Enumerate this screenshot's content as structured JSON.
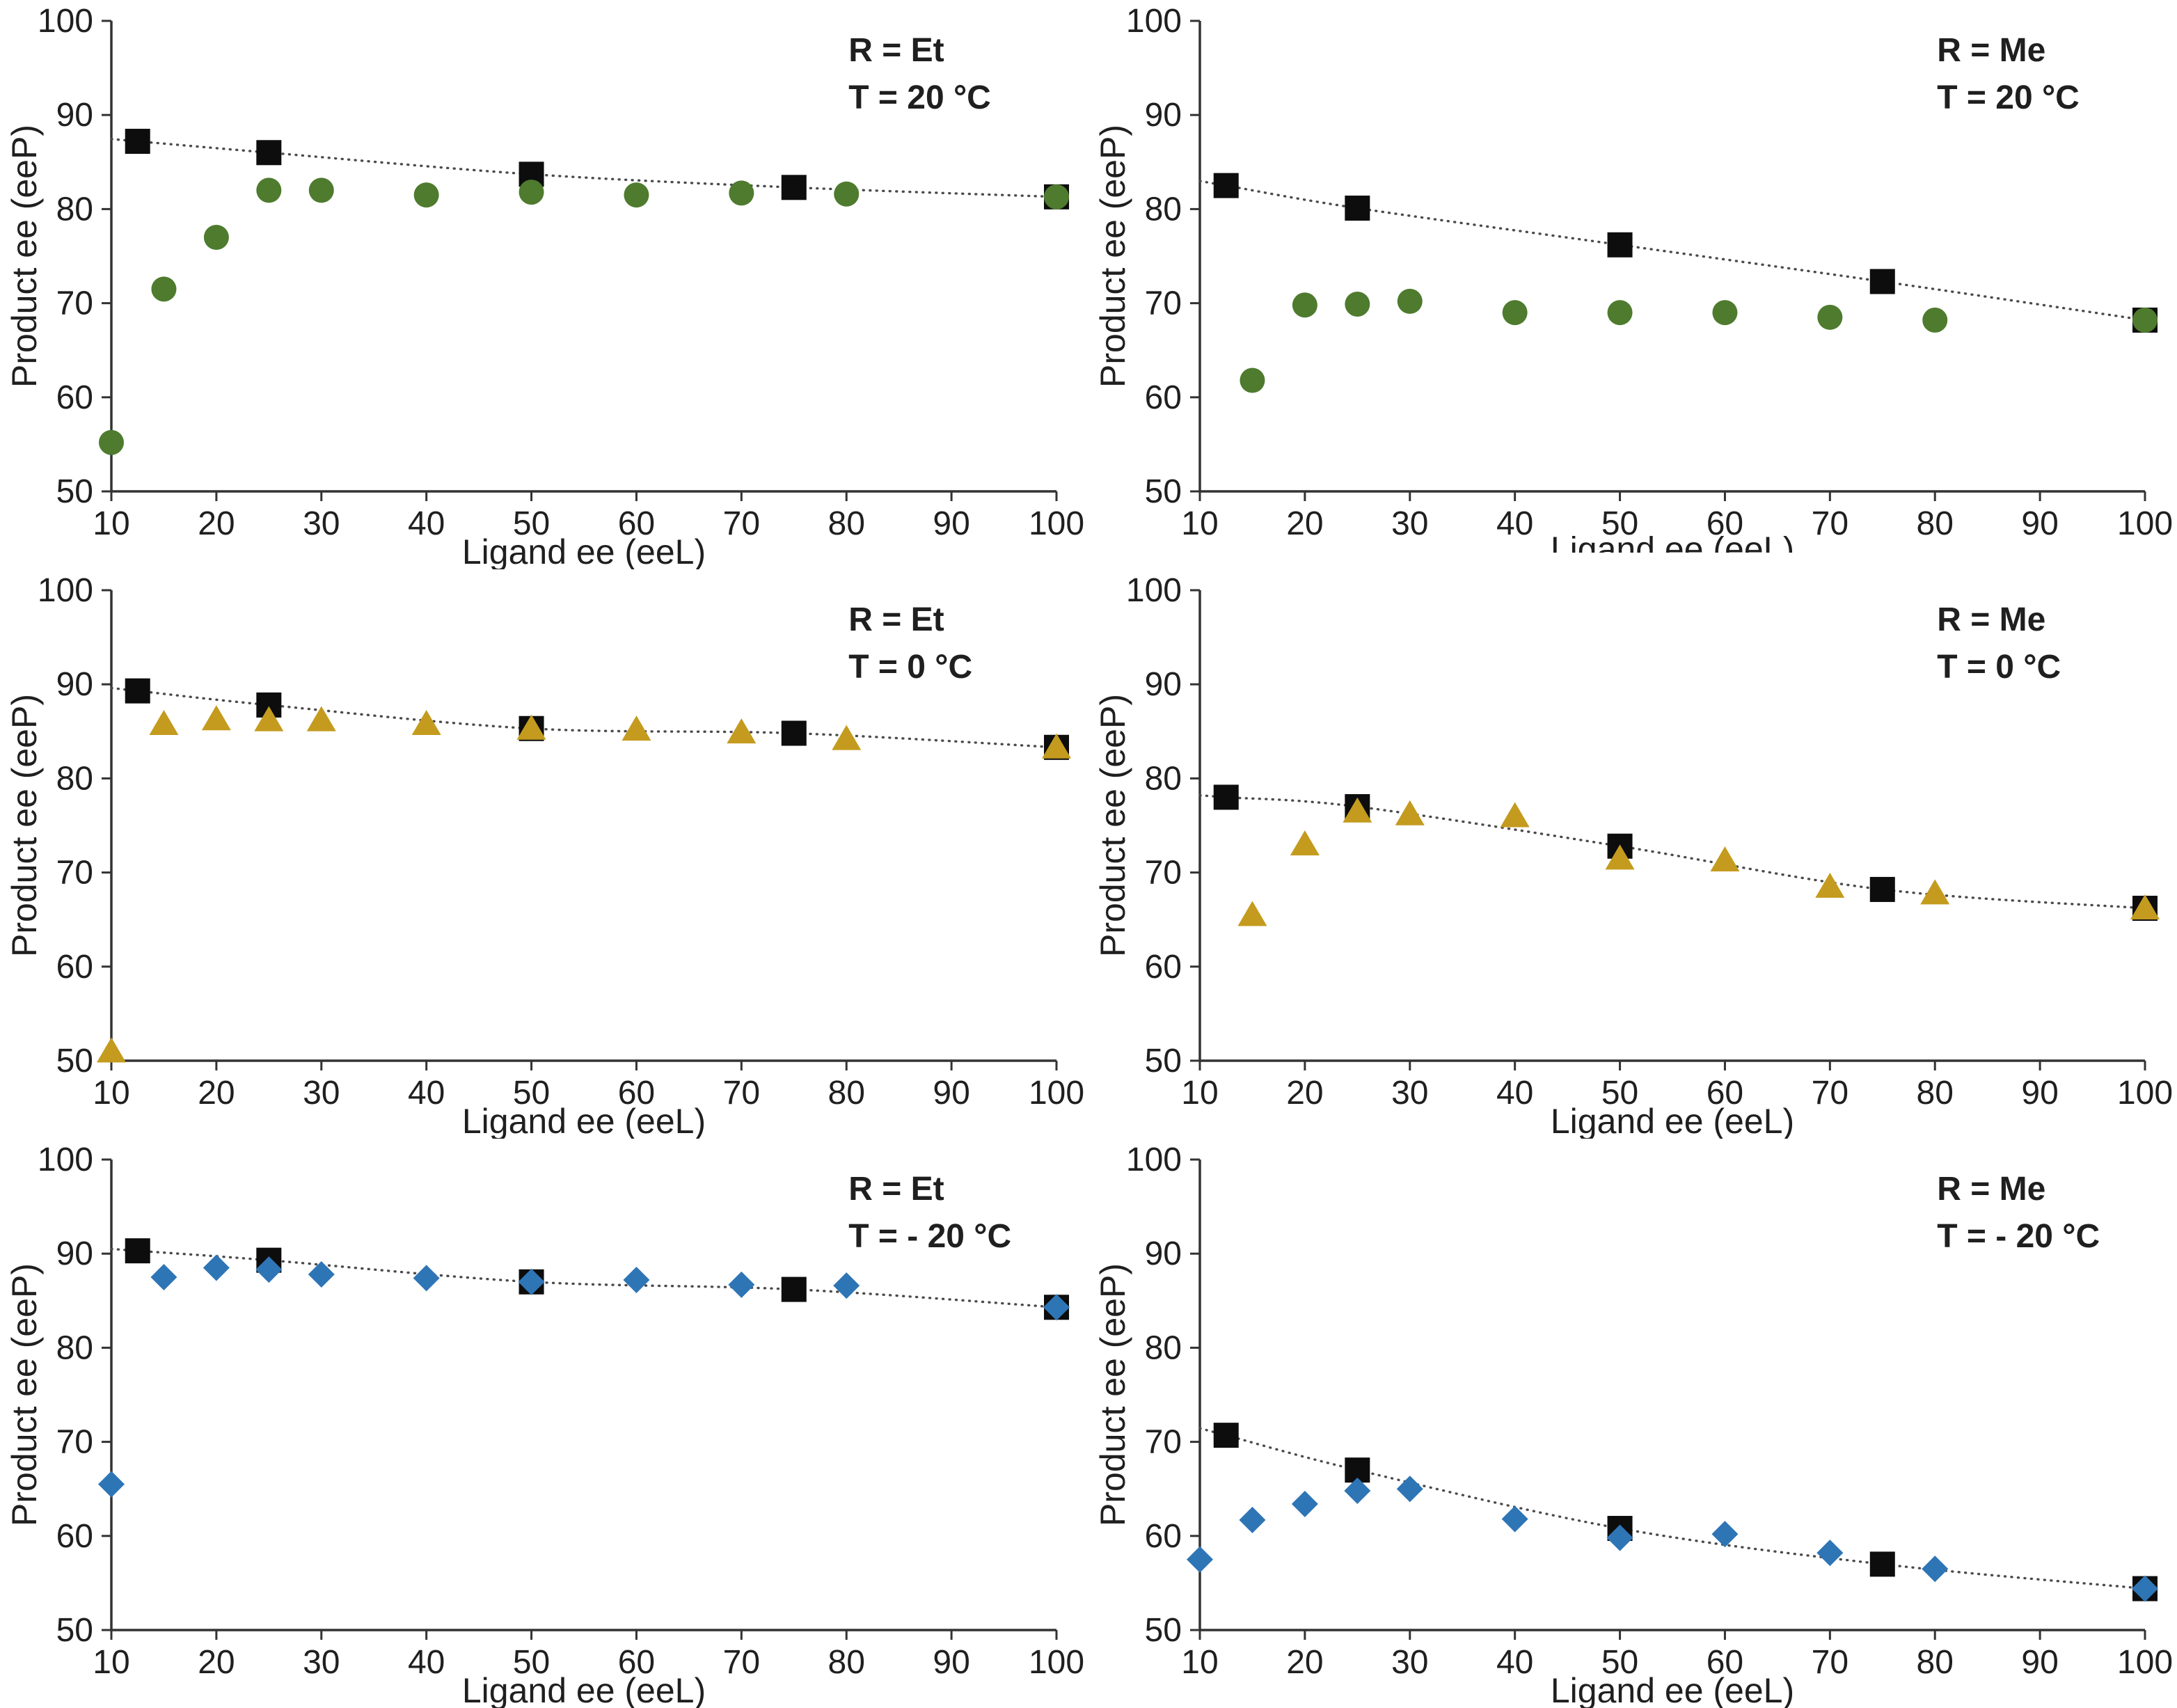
{
  "page": {
    "background": "#ffffff"
  },
  "colors": {
    "square_black": "#0d0d0d",
    "circle_green": "#4e7b2e",
    "triangle_gold": "#c49b1e",
    "diamond_blue": "#2e75b6",
    "trendline": "#4a4a4a",
    "axis": "#333333",
    "text": "#1f1f1f"
  },
  "chart_data": [
    {
      "type": "scatter",
      "grid_position": "top-left",
      "annotation": {
        "r": "R = Et",
        "t": "T = 20 °C"
      },
      "xlabel": "Ligand ee (eeL)",
      "ylabel": "Product ee (eeP)",
      "xlabel_clipped": false,
      "xlim": [
        10,
        100
      ],
      "ylim": [
        50,
        100
      ],
      "xticks": [
        10,
        20,
        30,
        40,
        50,
        60,
        70,
        80,
        90,
        100
      ],
      "yticks": [
        50,
        60,
        70,
        80,
        90,
        100
      ],
      "trendline": {
        "style": "dotted",
        "through": "squares"
      },
      "series": [
        {
          "name": "squares",
          "marker": "square",
          "color": "#0d0d0d",
          "points": [
            [
              12.5,
              87.2
            ],
            [
              25,
              86.0
            ],
            [
              50,
              83.7
            ],
            [
              75,
              82.3
            ],
            [
              100,
              81.3
            ]
          ]
        },
        {
          "name": "circles",
          "marker": "circle",
          "color": "#4e7b2e",
          "points": [
            [
              10,
              55.2
            ],
            [
              15,
              71.5
            ],
            [
              20,
              77.0
            ],
            [
              25,
              82.0
            ],
            [
              30,
              82.0
            ],
            [
              40,
              81.5
            ],
            [
              50,
              81.8
            ],
            [
              60,
              81.5
            ],
            [
              70,
              81.7
            ],
            [
              80,
              81.6
            ],
            [
              100,
              81.3
            ]
          ]
        }
      ]
    },
    {
      "type": "scatter",
      "grid_position": "top-right",
      "annotation": {
        "r": "R = Me",
        "t": "T = 20 °C"
      },
      "xlabel": "Ligand ee (eeL)",
      "ylabel": "Product ee (eeP)",
      "xlabel_clipped": true,
      "xlim": [
        10,
        100
      ],
      "ylim": [
        50,
        100
      ],
      "xticks": [
        10,
        20,
        30,
        40,
        50,
        60,
        70,
        80,
        90,
        100
      ],
      "yticks": [
        50,
        60,
        70,
        80,
        90,
        100
      ],
      "trendline": {
        "style": "dotted",
        "through": "squares"
      },
      "series": [
        {
          "name": "squares",
          "marker": "square",
          "color": "#0d0d0d",
          "points": [
            [
              12.5,
              82.5
            ],
            [
              25,
              80.1
            ],
            [
              50,
              76.2
            ],
            [
              75,
              72.3
            ],
            [
              100,
              68.2
            ]
          ]
        },
        {
          "name": "circles",
          "marker": "circle",
          "color": "#4e7b2e",
          "points": [
            [
              15,
              61.8
            ],
            [
              20,
              69.8
            ],
            [
              25,
              69.9
            ],
            [
              30,
              70.2
            ],
            [
              40,
              69.0
            ],
            [
              50,
              69.0
            ],
            [
              60,
              69.0
            ],
            [
              70,
              68.5
            ],
            [
              80,
              68.2
            ],
            [
              100,
              68.2
            ]
          ]
        }
      ]
    },
    {
      "type": "scatter",
      "grid_position": "middle-left",
      "annotation": {
        "r": "R = Et",
        "t": "T = 0 °C"
      },
      "xlabel": "Ligand ee (eeL)",
      "ylabel": "Product ee (eeP)",
      "xlabel_clipped": false,
      "xlim": [
        10,
        100
      ],
      "ylim": [
        50,
        100
      ],
      "xticks": [
        10,
        20,
        30,
        40,
        50,
        60,
        70,
        80,
        90,
        100
      ],
      "yticks": [
        50,
        60,
        70,
        80,
        90,
        100
      ],
      "trendline": {
        "style": "dotted",
        "through": "squares"
      },
      "series": [
        {
          "name": "squares",
          "marker": "square",
          "color": "#0d0d0d",
          "points": [
            [
              12.5,
              89.3
            ],
            [
              25,
              87.8
            ],
            [
              50,
              85.3
            ],
            [
              75,
              84.8
            ],
            [
              100,
              83.3
            ]
          ]
        },
        {
          "name": "triangles",
          "marker": "triangle",
          "color": "#c49b1e",
          "points": [
            [
              10,
              51.0
            ],
            [
              15,
              85.8
            ],
            [
              20,
              86.3
            ],
            [
              25,
              86.2
            ],
            [
              30,
              86.2
            ],
            [
              40,
              85.8
            ],
            [
              50,
              85.3
            ],
            [
              60,
              85.2
            ],
            [
              70,
              84.9
            ],
            [
              80,
              84.2
            ],
            [
              100,
              83.3
            ]
          ]
        }
      ]
    },
    {
      "type": "scatter",
      "grid_position": "middle-right",
      "annotation": {
        "r": "R = Me",
        "t": "T = 0 °C"
      },
      "xlabel": "Ligand ee (eeL)",
      "ylabel": "Product ee (eeP)",
      "xlabel_clipped": false,
      "xlim": [
        10,
        100
      ],
      "ylim": [
        50,
        100
      ],
      "xticks": [
        10,
        20,
        30,
        40,
        50,
        60,
        70,
        80,
        90,
        100
      ],
      "yticks": [
        50,
        60,
        70,
        80,
        90,
        100
      ],
      "trendline": {
        "style": "dotted",
        "through": "squares"
      },
      "series": [
        {
          "name": "squares",
          "marker": "square",
          "color": "#0d0d0d",
          "points": [
            [
              12.5,
              78.0
            ],
            [
              25,
              77.0
            ],
            [
              50,
              72.8
            ],
            [
              75,
              68.2
            ],
            [
              100,
              66.2
            ]
          ]
        },
        {
          "name": "triangles",
          "marker": "triangle",
          "color": "#c49b1e",
          "points": [
            [
              15,
              65.5
            ],
            [
              20,
              73.0
            ],
            [
              25,
              76.5
            ],
            [
              30,
              76.2
            ],
            [
              40,
              76.0
            ],
            [
              50,
              71.5
            ],
            [
              60,
              71.3
            ],
            [
              70,
              68.5
            ],
            [
              80,
              67.8
            ],
            [
              100,
              66.2
            ]
          ]
        }
      ]
    },
    {
      "type": "scatter",
      "grid_position": "bottom-left",
      "annotation": {
        "r": "R = Et",
        "t": "T = - 20 °C"
      },
      "xlabel": "Ligand ee (eeL)",
      "ylabel": "Product ee (eeP)",
      "xlabel_clipped": false,
      "xlim": [
        10,
        100
      ],
      "ylim": [
        50,
        100
      ],
      "xticks": [
        10,
        20,
        30,
        40,
        50,
        60,
        70,
        80,
        90,
        100
      ],
      "yticks": [
        50,
        60,
        70,
        80,
        90,
        100
      ],
      "trendline": {
        "style": "dotted",
        "through": "squares"
      },
      "series": [
        {
          "name": "squares",
          "marker": "square",
          "color": "#0d0d0d",
          "points": [
            [
              12.5,
              90.3
            ],
            [
              25,
              89.3
            ],
            [
              50,
              87.0
            ],
            [
              75,
              86.2
            ],
            [
              100,
              84.3
            ]
          ]
        },
        {
          "name": "diamonds",
          "marker": "diamond",
          "color": "#2e75b6",
          "points": [
            [
              10,
              65.5
            ],
            [
              15,
              87.5
            ],
            [
              20,
              88.5
            ],
            [
              25,
              88.3
            ],
            [
              30,
              87.8
            ],
            [
              40,
              87.4
            ],
            [
              50,
              87.0
            ],
            [
              60,
              87.2
            ],
            [
              70,
              86.7
            ],
            [
              80,
              86.6
            ],
            [
              100,
              84.3
            ]
          ]
        }
      ]
    },
    {
      "type": "scatter",
      "grid_position": "bottom-right",
      "annotation": {
        "r": "R = Me",
        "t": "T = - 20 °C"
      },
      "xlabel": "Ligand ee (eeL)",
      "ylabel": "Product ee (eeP)",
      "xlabel_clipped": false,
      "xlim": [
        10,
        100
      ],
      "ylim": [
        50,
        100
      ],
      "xticks": [
        10,
        20,
        30,
        40,
        50,
        60,
        70,
        80,
        90,
        100
      ],
      "yticks": [
        50,
        60,
        70,
        80,
        90,
        100
      ],
      "trendline": {
        "style": "dotted",
        "through": "squares"
      },
      "series": [
        {
          "name": "squares",
          "marker": "square",
          "color": "#0d0d0d",
          "points": [
            [
              12.5,
              70.7
            ],
            [
              25,
              67.0
            ],
            [
              50,
              60.8
            ],
            [
              75,
              57.0
            ],
            [
              100,
              54.4
            ]
          ]
        },
        {
          "name": "diamonds",
          "marker": "diamond",
          "color": "#2e75b6",
          "points": [
            [
              10,
              57.5
            ],
            [
              15,
              61.7
            ],
            [
              20,
              63.4
            ],
            [
              25,
              64.8
            ],
            [
              30,
              65.0
            ],
            [
              40,
              61.8
            ],
            [
              50,
              59.8
            ],
            [
              60,
              60.2
            ],
            [
              70,
              58.2
            ],
            [
              80,
              56.5
            ],
            [
              100,
              54.4
            ]
          ]
        }
      ]
    }
  ]
}
